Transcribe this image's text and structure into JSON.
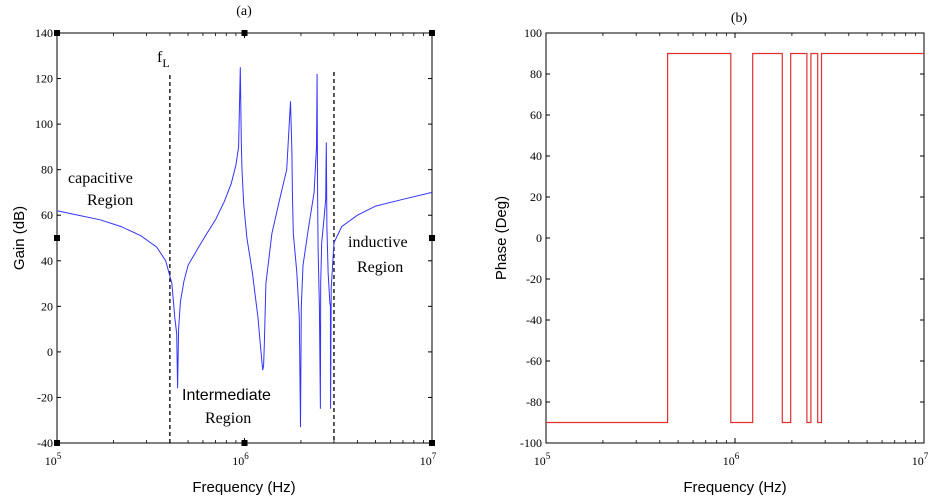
{
  "colors": {
    "gain_line": "#3333ff",
    "phase_line": "#e03030",
    "frame": "#000000",
    "background": "#ffffff"
  },
  "chart_data": [
    {
      "type": "line",
      "panel_label": "(a)",
      "xlabel": "Frequency (Hz)",
      "ylabel": "Gain (dB)",
      "xscale": "log",
      "xlim": [
        100000,
        10000000
      ],
      "ylim": [
        -40,
        140
      ],
      "x_ticks": [
        {
          "value": 100000,
          "base": "10",
          "exp": "5"
        },
        {
          "value": 1000000,
          "base": "10",
          "exp": "6"
        },
        {
          "value": 10000000,
          "base": "10",
          "exp": "7"
        }
      ],
      "y_ticks": [
        "-40",
        "-20",
        "0",
        "20",
        "40",
        "60",
        "80",
        "100",
        "120",
        "140"
      ],
      "grid": false,
      "series": [
        {
          "x": [
            100000,
            130000,
            170000,
            220000,
            280000,
            340000,
            380000,
            410000,
            425000,
            435000,
            440000,
            445000,
            455000,
            475000,
            500000,
            560000,
            630000,
            700000,
            780000,
            850000,
            900000,
            930000,
            950000,
            962000,
            970000,
            990000,
            1030000,
            1100000,
            1180000,
            1225000,
            1250000,
            1265000,
            1275000,
            1300000,
            1400000,
            1550000,
            1680000,
            1760000,
            1790000,
            1800000,
            1820000,
            1900000,
            1960000,
            1990000,
            2010000,
            2050000,
            2200000,
            2350000,
            2420000,
            2440000,
            2450000,
            2470000,
            2510000,
            2540000,
            2550000,
            2580000,
            2650000,
            2710000,
            2730000,
            2750000,
            2790000,
            2850000,
            2870000,
            2880000,
            2900000,
            3000000,
            3300000,
            4000000,
            5000000,
            7000000,
            10000000
          ],
          "y": [
            62,
            60,
            58,
            55,
            51,
            46,
            40,
            30,
            15,
            8,
            -16,
            10,
            22,
            31,
            38,
            45,
            52,
            58,
            66,
            74,
            82,
            90,
            125,
            92,
            80,
            65,
            50,
            35,
            15,
            0,
            -8,
            -6,
            3,
            30,
            52,
            68,
            80,
            110,
            88,
            70,
            52,
            35,
            15,
            -33,
            20,
            38,
            55,
            70,
            90,
            122,
            75,
            45,
            20,
            -25,
            30,
            48,
            58,
            67,
            92,
            55,
            35,
            22,
            20,
            -25,
            28,
            48,
            55,
            60,
            64,
            67,
            70
          ]
        }
      ],
      "annotations": [
        {
          "id": "fl",
          "main": "f",
          "sub": "L"
        },
        {
          "id": "capacitive",
          "lines": [
            "capacitive",
            "Region"
          ]
        },
        {
          "id": "inductive",
          "lines": [
            "inductive",
            "Region"
          ]
        },
        {
          "id": "intermediate",
          "lines": [
            "Intermediate",
            "Region"
          ]
        }
      ],
      "markers": [
        {
          "label": "fL",
          "x": 400000
        },
        {
          "x": 3000000
        }
      ]
    },
    {
      "type": "line",
      "panel_label": "(b)",
      "xlabel": "Frequency (Hz)",
      "ylabel": "Phase (Deg)",
      "xscale": "log",
      "xlim": [
        100000,
        10000000
      ],
      "ylim": [
        -100,
        100
      ],
      "x_ticks": [
        {
          "value": 100000,
          "base": "10",
          "exp": "5"
        },
        {
          "value": 1000000,
          "base": "10",
          "exp": "6"
        },
        {
          "value": 10000000,
          "base": "10",
          "exp": "7"
        }
      ],
      "y_ticks": [
        "-100",
        "-80",
        "-60",
        "-40",
        "-20",
        "0",
        "20",
        "40",
        "60",
        "80",
        "100"
      ],
      "grid": false,
      "series": [
        {
          "x": [
            100000,
            440000,
            440000,
            950000,
            950000,
            1240000,
            1240000,
            1780000,
            1780000,
            1970000,
            1970000,
            2400000,
            2400000,
            2520000,
            2520000,
            2740000,
            2740000,
            2870000,
            2870000,
            10000000
          ],
          "y": [
            -90,
            -90,
            90,
            90,
            -90,
            -90,
            90,
            90,
            -90,
            -90,
            90,
            90,
            -90,
            -90,
            90,
            90,
            -90,
            -90,
            90,
            90
          ]
        }
      ]
    }
  ]
}
